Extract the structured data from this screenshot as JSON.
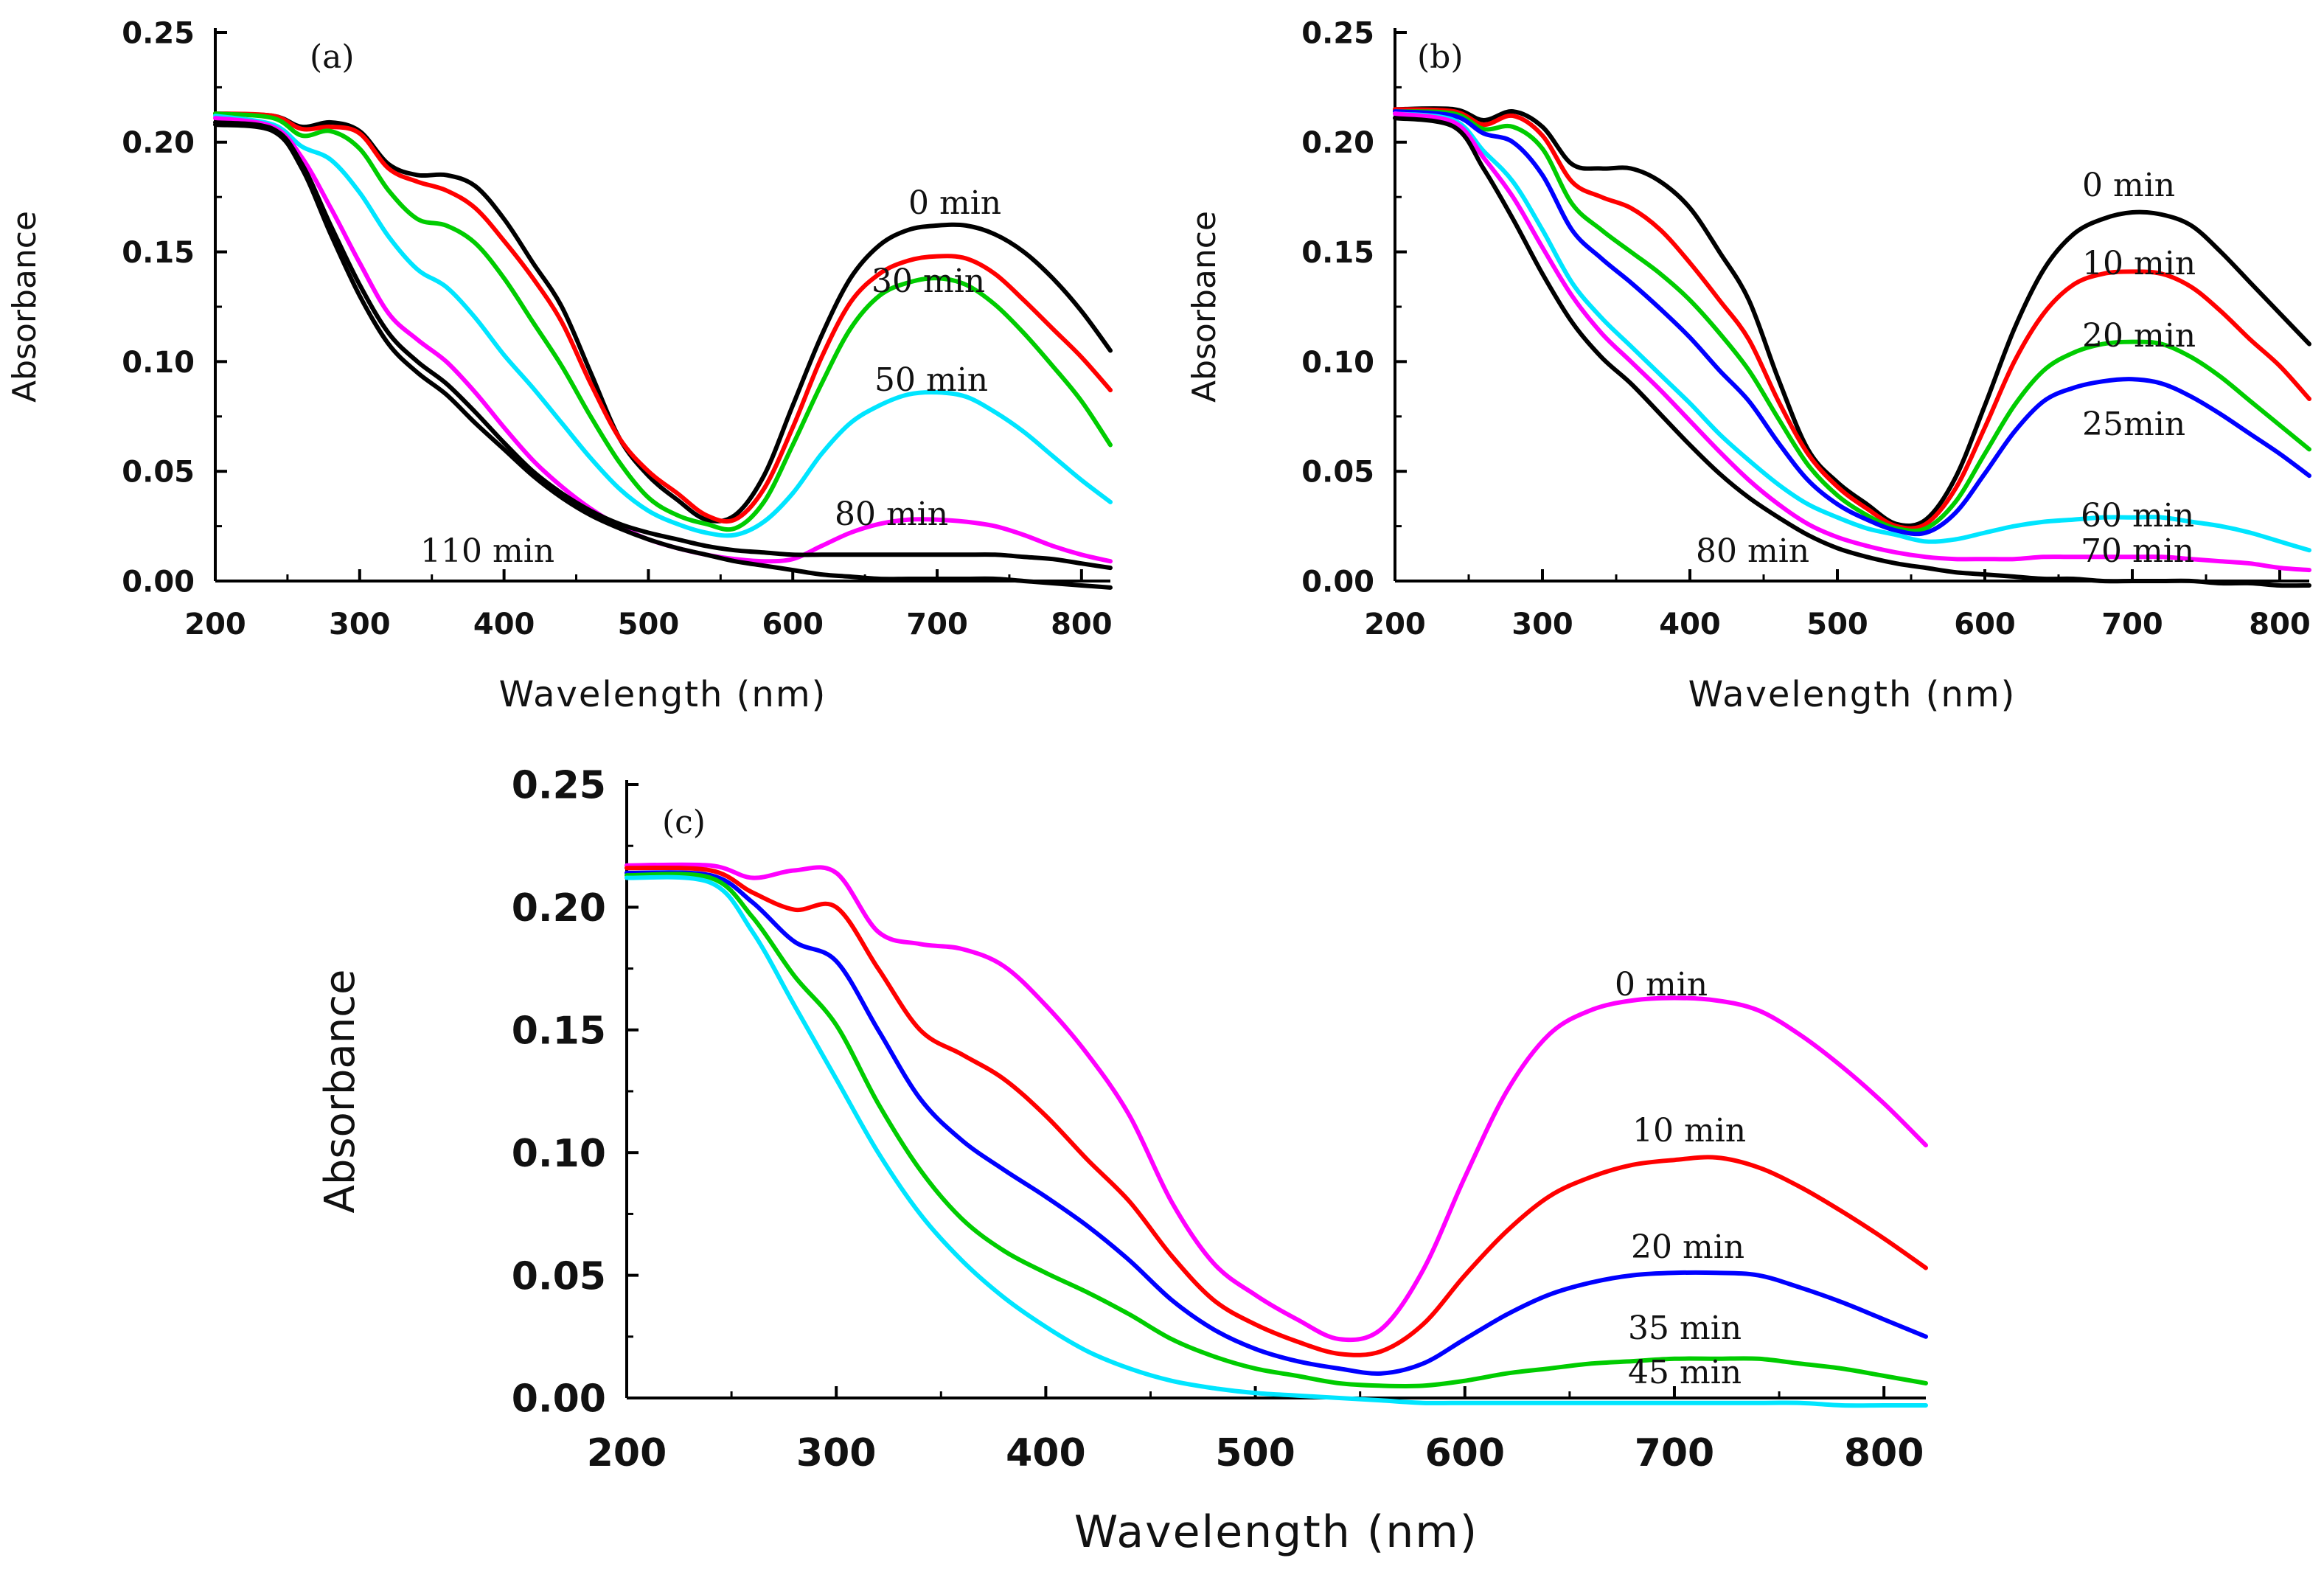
{
  "chart_data": [
    {
      "type": "line",
      "panel_label": "(a)",
      "xlabel": "Wavelength (nm)",
      "ylabel": "Absorbance",
      "xlim": [
        200,
        820
      ],
      "ylim": [
        0,
        0.25
      ],
      "xticks": [
        200,
        300,
        400,
        500,
        600,
        700,
        800
      ],
      "yticks": [
        0.0,
        0.05,
        0.1,
        0.15,
        0.2,
        0.25
      ],
      "x": [
        200,
        240,
        260,
        280,
        300,
        320,
        340,
        360,
        380,
        400,
        420,
        440,
        460,
        480,
        500,
        520,
        540,
        560,
        580,
        600,
        620,
        640,
        660,
        680,
        700,
        720,
        740,
        760,
        780,
        800,
        820
      ],
      "series": [
        {
          "name": "0 min",
          "color": "#000000",
          "values": [
            0.213,
            0.212,
            0.207,
            0.209,
            0.205,
            0.19,
            0.185,
            0.185,
            0.18,
            0.165,
            0.145,
            0.125,
            0.095,
            0.065,
            0.048,
            0.037,
            0.028,
            0.03,
            0.048,
            0.08,
            0.112,
            0.138,
            0.153,
            0.16,
            0.162,
            0.162,
            0.158,
            0.15,
            0.138,
            0.123,
            0.105
          ]
        },
        {
          "name": "30 min",
          "color": "#ff0000",
          "values": [
            0.213,
            0.212,
            0.206,
            0.207,
            0.204,
            0.188,
            0.182,
            0.178,
            0.17,
            0.155,
            0.138,
            0.118,
            0.09,
            0.065,
            0.05,
            0.04,
            0.03,
            0.028,
            0.042,
            0.07,
            0.102,
            0.127,
            0.14,
            0.146,
            0.148,
            0.147,
            0.14,
            0.128,
            0.115,
            0.102,
            0.087
          ]
        },
        {
          "name": "",
          "color": "#00cc00",
          "values": [
            0.213,
            0.211,
            0.203,
            0.205,
            0.197,
            0.178,
            0.165,
            0.162,
            0.154,
            0.138,
            0.118,
            0.098,
            0.075,
            0.054,
            0.038,
            0.03,
            0.026,
            0.024,
            0.036,
            0.062,
            0.09,
            0.115,
            0.13,
            0.136,
            0.138,
            0.135,
            0.126,
            0.113,
            0.098,
            0.082,
            0.062
          ]
        },
        {
          "name": "50 min",
          "color": "#00e5ff",
          "values": [
            0.212,
            0.208,
            0.198,
            0.192,
            0.177,
            0.157,
            0.142,
            0.134,
            0.12,
            0.103,
            0.088,
            0.072,
            0.056,
            0.042,
            0.032,
            0.026,
            0.022,
            0.021,
            0.027,
            0.04,
            0.058,
            0.072,
            0.08,
            0.085,
            0.086,
            0.084,
            0.077,
            0.068,
            0.057,
            0.046,
            0.036
          ]
        },
        {
          "name": "80 min",
          "color": "#ff00ff",
          "values": [
            0.211,
            0.207,
            0.193,
            0.17,
            0.145,
            0.122,
            0.11,
            0.1,
            0.086,
            0.07,
            0.055,
            0.043,
            0.033,
            0.025,
            0.019,
            0.015,
            0.012,
            0.01,
            0.009,
            0.01,
            0.016,
            0.022,
            0.026,
            0.028,
            0.028,
            0.027,
            0.025,
            0.021,
            0.016,
            0.012,
            0.009
          ]
        },
        {
          "name": "110 min",
          "color": "#000000",
          "values": [
            0.209,
            0.206,
            0.19,
            0.162,
            0.135,
            0.113,
            0.1,
            0.09,
            0.077,
            0.063,
            0.05,
            0.04,
            0.032,
            0.026,
            0.022,
            0.019,
            0.016,
            0.014,
            0.013,
            0.012,
            0.012,
            0.012,
            0.012,
            0.012,
            0.012,
            0.012,
            0.012,
            0.011,
            0.01,
            0.008,
            0.006
          ]
        },
        {
          "name": "",
          "color": "#000000",
          "values": [
            0.208,
            0.205,
            0.188,
            0.158,
            0.13,
            0.108,
            0.095,
            0.085,
            0.072,
            0.06,
            0.048,
            0.038,
            0.03,
            0.024,
            0.019,
            0.015,
            0.012,
            0.009,
            0.007,
            0.005,
            0.003,
            0.002,
            0.001,
            0.001,
            0.001,
            0.001,
            0.001,
            0.0,
            -0.001,
            -0.002,
            -0.003
          ]
        }
      ]
    },
    {
      "type": "line",
      "panel_label": "(b)",
      "xlabel": "Wavelength (nm)",
      "ylabel": "Absorbance",
      "xlim": [
        200,
        820
      ],
      "ylim": [
        0,
        0.25
      ],
      "xticks": [
        200,
        300,
        400,
        500,
        600,
        700,
        800
      ],
      "yticks": [
        0.0,
        0.05,
        0.1,
        0.15,
        0.2,
        0.25
      ],
      "x": [
        200,
        240,
        260,
        280,
        300,
        320,
        340,
        360,
        380,
        400,
        420,
        440,
        460,
        480,
        500,
        520,
        540,
        560,
        580,
        600,
        620,
        640,
        660,
        680,
        700,
        720,
        740,
        760,
        780,
        800,
        820
      ],
      "series": [
        {
          "name": "0 min",
          "color": "#000000",
          "values": [
            0.215,
            0.215,
            0.21,
            0.214,
            0.207,
            0.19,
            0.188,
            0.188,
            0.182,
            0.17,
            0.15,
            0.128,
            0.092,
            0.06,
            0.045,
            0.035,
            0.026,
            0.028,
            0.047,
            0.08,
            0.115,
            0.142,
            0.158,
            0.165,
            0.168,
            0.167,
            0.162,
            0.15,
            0.136,
            0.122,
            0.108
          ]
        },
        {
          "name": "10 min",
          "color": "#ff0000",
          "values": [
            0.215,
            0.214,
            0.208,
            0.212,
            0.203,
            0.182,
            0.175,
            0.17,
            0.16,
            0.145,
            0.128,
            0.11,
            0.082,
            0.058,
            0.043,
            0.033,
            0.025,
            0.026,
            0.042,
            0.07,
            0.1,
            0.122,
            0.135,
            0.14,
            0.141,
            0.14,
            0.134,
            0.123,
            0.11,
            0.098,
            0.083
          ]
        },
        {
          "name": "20 min",
          "color": "#00cc00",
          "values": [
            0.214,
            0.213,
            0.206,
            0.207,
            0.197,
            0.172,
            0.16,
            0.15,
            0.14,
            0.128,
            0.113,
            0.096,
            0.074,
            0.053,
            0.039,
            0.03,
            0.024,
            0.024,
            0.036,
            0.058,
            0.08,
            0.096,
            0.104,
            0.108,
            0.109,
            0.108,
            0.102,
            0.093,
            0.082,
            0.071,
            0.06
          ]
        },
        {
          "name": "25min",
          "color": "#0000ff",
          "values": [
            0.214,
            0.212,
            0.204,
            0.2,
            0.185,
            0.16,
            0.147,
            0.136,
            0.124,
            0.111,
            0.096,
            0.082,
            0.063,
            0.046,
            0.035,
            0.028,
            0.023,
            0.022,
            0.031,
            0.049,
            0.068,
            0.082,
            0.088,
            0.091,
            0.092,
            0.09,
            0.084,
            0.076,
            0.067,
            0.058,
            0.048
          ]
        },
        {
          "name": "60 min",
          "color": "#00e5ff",
          "values": [
            0.213,
            0.21,
            0.196,
            0.182,
            0.16,
            0.136,
            0.12,
            0.107,
            0.094,
            0.081,
            0.067,
            0.055,
            0.044,
            0.035,
            0.029,
            0.024,
            0.021,
            0.018,
            0.019,
            0.022,
            0.025,
            0.027,
            0.028,
            0.029,
            0.029,
            0.029,
            0.027,
            0.025,
            0.022,
            0.018,
            0.014
          ]
        },
        {
          "name": "70 min",
          "color": "#ff00ff",
          "values": [
            0.213,
            0.209,
            0.193,
            0.175,
            0.152,
            0.13,
            0.113,
            0.1,
            0.087,
            0.073,
            0.059,
            0.046,
            0.035,
            0.026,
            0.02,
            0.016,
            0.013,
            0.011,
            0.01,
            0.01,
            0.01,
            0.011,
            0.011,
            0.011,
            0.011,
            0.011,
            0.01,
            0.009,
            0.008,
            0.006,
            0.005
          ]
        },
        {
          "name": "80 min",
          "color": "#000000",
          "values": [
            0.211,
            0.207,
            0.188,
            0.165,
            0.14,
            0.118,
            0.102,
            0.09,
            0.076,
            0.062,
            0.049,
            0.038,
            0.029,
            0.021,
            0.015,
            0.011,
            0.008,
            0.006,
            0.004,
            0.003,
            0.002,
            0.001,
            0.001,
            0.0,
            0.0,
            0.0,
            0.0,
            -0.001,
            -0.001,
            -0.002,
            -0.002
          ]
        }
      ]
    },
    {
      "type": "line",
      "panel_label": "(c)",
      "xlabel": "Wavelength (nm)",
      "ylabel": "Absorbance",
      "xlim": [
        200,
        820
      ],
      "ylim": [
        0,
        0.25
      ],
      "xticks": [
        200,
        300,
        400,
        500,
        600,
        700,
        800
      ],
      "yticks": [
        0.0,
        0.05,
        0.1,
        0.15,
        0.2,
        0.25
      ],
      "x": [
        200,
        240,
        260,
        280,
        300,
        320,
        340,
        360,
        380,
        400,
        420,
        440,
        460,
        480,
        500,
        520,
        540,
        560,
        580,
        600,
        620,
        640,
        660,
        680,
        700,
        720,
        740,
        760,
        780,
        800,
        820
      ],
      "series": [
        {
          "name": "0 min",
          "color": "#ff00ff",
          "values": [
            0.217,
            0.217,
            0.212,
            0.215,
            0.214,
            0.19,
            0.185,
            0.183,
            0.176,
            0.16,
            0.14,
            0.115,
            0.08,
            0.055,
            0.042,
            0.032,
            0.024,
            0.028,
            0.052,
            0.09,
            0.125,
            0.148,
            0.158,
            0.162,
            0.163,
            0.162,
            0.158,
            0.148,
            0.135,
            0.12,
            0.103
          ]
        },
        {
          "name": "10 min",
          "color": "#ff0000",
          "values": [
            0.216,
            0.215,
            0.206,
            0.199,
            0.2,
            0.175,
            0.15,
            0.14,
            0.13,
            0.115,
            0.097,
            0.08,
            0.058,
            0.04,
            0.03,
            0.023,
            0.018,
            0.019,
            0.03,
            0.05,
            0.068,
            0.082,
            0.09,
            0.095,
            0.097,
            0.098,
            0.094,
            0.086,
            0.076,
            0.065,
            0.053
          ]
        },
        {
          "name": "20 min",
          "color": "#0000ff",
          "values": [
            0.214,
            0.213,
            0.202,
            0.186,
            0.178,
            0.15,
            0.122,
            0.105,
            0.093,
            0.082,
            0.07,
            0.056,
            0.04,
            0.028,
            0.02,
            0.015,
            0.012,
            0.01,
            0.014,
            0.024,
            0.034,
            0.042,
            0.047,
            0.05,
            0.051,
            0.051,
            0.05,
            0.045,
            0.039,
            0.032,
            0.025
          ]
        },
        {
          "name": "35 min",
          "color": "#00cc00",
          "values": [
            0.213,
            0.212,
            0.196,
            0.172,
            0.152,
            0.12,
            0.093,
            0.073,
            0.06,
            0.051,
            0.043,
            0.034,
            0.024,
            0.017,
            0.012,
            0.009,
            0.006,
            0.005,
            0.005,
            0.007,
            0.01,
            0.012,
            0.014,
            0.015,
            0.016,
            0.016,
            0.016,
            0.014,
            0.012,
            0.009,
            0.006
          ]
        },
        {
          "name": "45 min",
          "color": "#00e5ff",
          "values": [
            0.212,
            0.21,
            0.19,
            0.16,
            0.13,
            0.1,
            0.075,
            0.056,
            0.041,
            0.029,
            0.019,
            0.012,
            0.007,
            0.004,
            0.002,
            0.001,
            0.0,
            -0.001,
            -0.002,
            -0.002,
            -0.002,
            -0.002,
            -0.002,
            -0.002,
            -0.002,
            -0.002,
            -0.002,
            -0.002,
            -0.003,
            -0.003,
            -0.003
          ]
        }
      ]
    }
  ]
}
